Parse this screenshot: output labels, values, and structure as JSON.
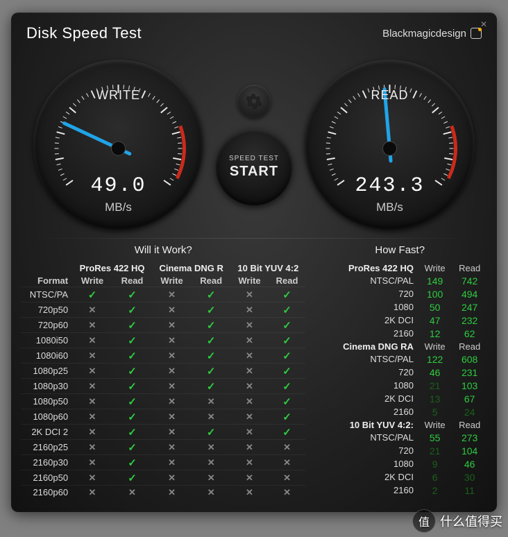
{
  "window": {
    "title": "Disk Speed Test",
    "brand": "Blackmagicdesign"
  },
  "gauges": {
    "write": {
      "label": "WRITE",
      "value": "49.0",
      "unit": "MB/s",
      "needle_angle_deg": 155,
      "needle_color": "#20a4e8",
      "redzone_start_deg": 10,
      "redzone_end_deg": 35,
      "redzone_color": "#cc2a1a",
      "tick_color": "#e8e8e8",
      "face_color": "#1b1b1b"
    },
    "read": {
      "label": "READ",
      "value": "243.3",
      "unit": "MB/s",
      "needle_angle_deg": 95,
      "needle_color": "#20a4e8",
      "redzone_start_deg": 10,
      "redzone_end_deg": 35,
      "redzone_color": "#cc2a1a",
      "tick_color": "#e8e8e8",
      "face_color": "#1b1b1b"
    }
  },
  "buttons": {
    "start_sub": "SPEED TEST",
    "start_main": "START"
  },
  "willitwork": {
    "title": "Will it Work?",
    "format_label": "Format",
    "write_label": "Write",
    "read_label": "Read",
    "groups": [
      "ProRes 422 HQ",
      "Cinema DNG R",
      "10 Bit YUV 4:2"
    ],
    "rows": [
      {
        "fmt": "NTSC/PA",
        "c": [
          [
            1,
            1
          ],
          [
            0,
            1
          ],
          [
            0,
            1
          ]
        ]
      },
      {
        "fmt": "720p50",
        "c": [
          [
            0,
            1
          ],
          [
            0,
            1
          ],
          [
            0,
            1
          ]
        ]
      },
      {
        "fmt": "720p60",
        "c": [
          [
            0,
            1
          ],
          [
            0,
            1
          ],
          [
            0,
            1
          ]
        ]
      },
      {
        "fmt": "1080i50",
        "c": [
          [
            0,
            1
          ],
          [
            0,
            1
          ],
          [
            0,
            1
          ]
        ]
      },
      {
        "fmt": "1080i60",
        "c": [
          [
            0,
            1
          ],
          [
            0,
            1
          ],
          [
            0,
            1
          ]
        ]
      },
      {
        "fmt": "1080p25",
        "c": [
          [
            0,
            1
          ],
          [
            0,
            1
          ],
          [
            0,
            1
          ]
        ]
      },
      {
        "fmt": "1080p30",
        "c": [
          [
            0,
            1
          ],
          [
            0,
            1
          ],
          [
            0,
            1
          ]
        ]
      },
      {
        "fmt": "1080p50",
        "c": [
          [
            0,
            1
          ],
          [
            0,
            0
          ],
          [
            0,
            1
          ]
        ]
      },
      {
        "fmt": "1080p60",
        "c": [
          [
            0,
            1
          ],
          [
            0,
            0
          ],
          [
            0,
            1
          ]
        ]
      },
      {
        "fmt": "2K DCI 2",
        "c": [
          [
            0,
            1
          ],
          [
            0,
            1
          ],
          [
            0,
            1
          ]
        ]
      },
      {
        "fmt": "2160p25",
        "c": [
          [
            0,
            1
          ],
          [
            0,
            0
          ],
          [
            0,
            0
          ]
        ]
      },
      {
        "fmt": "2160p30",
        "c": [
          [
            0,
            1
          ],
          [
            0,
            0
          ],
          [
            0,
            0
          ]
        ]
      },
      {
        "fmt": "2160p50",
        "c": [
          [
            0,
            1
          ],
          [
            0,
            0
          ],
          [
            0,
            0
          ]
        ]
      },
      {
        "fmt": "2160p60",
        "c": [
          [
            0,
            0
          ],
          [
            0,
            0
          ],
          [
            0,
            0
          ]
        ]
      }
    ]
  },
  "howfast": {
    "title": "How Fast?",
    "write_label": "Write",
    "read_label": "Read",
    "sections": [
      {
        "name": "ProRes 422 HQ",
        "rows": [
          {
            "fmt": "NTSC/PAL",
            "w": "149",
            "r": "742",
            "dimW": false,
            "dimR": false
          },
          {
            "fmt": "720",
            "w": "100",
            "r": "494",
            "dimW": false,
            "dimR": false
          },
          {
            "fmt": "1080",
            "w": "50",
            "r": "247",
            "dimW": false,
            "dimR": false
          },
          {
            "fmt": "2K DCI",
            "w": "47",
            "r": "232",
            "dimW": false,
            "dimR": false
          },
          {
            "fmt": "2160",
            "w": "12",
            "r": "62",
            "dimW": false,
            "dimR": false
          }
        ]
      },
      {
        "name": "Cinema DNG RA",
        "rows": [
          {
            "fmt": "NTSC/PAL",
            "w": "122",
            "r": "608",
            "dimW": false,
            "dimR": false
          },
          {
            "fmt": "720",
            "w": "46",
            "r": "231",
            "dimW": false,
            "dimR": false
          },
          {
            "fmt": "1080",
            "w": "21",
            "r": "103",
            "dimW": true,
            "dimR": false
          },
          {
            "fmt": "2K DCI",
            "w": "13",
            "r": "67",
            "dimW": true,
            "dimR": false
          },
          {
            "fmt": "2160",
            "w": "5",
            "r": "24",
            "dimW": true,
            "dimR": true
          }
        ]
      },
      {
        "name": "10 Bit YUV 4:2:",
        "rows": [
          {
            "fmt": "NTSC/PAL",
            "w": "55",
            "r": "273",
            "dimW": false,
            "dimR": false
          },
          {
            "fmt": "720",
            "w": "21",
            "r": "104",
            "dimW": true,
            "dimR": false
          },
          {
            "fmt": "1080",
            "w": "9",
            "r": "46",
            "dimW": true,
            "dimR": false
          },
          {
            "fmt": "2K DCI",
            "w": "6",
            "r": "30",
            "dimW": true,
            "dimR": true
          },
          {
            "fmt": "2160",
            "w": "2",
            "r": "11",
            "dimW": true,
            "dimR": true
          }
        ]
      }
    ]
  },
  "watermark": "什么值得买"
}
